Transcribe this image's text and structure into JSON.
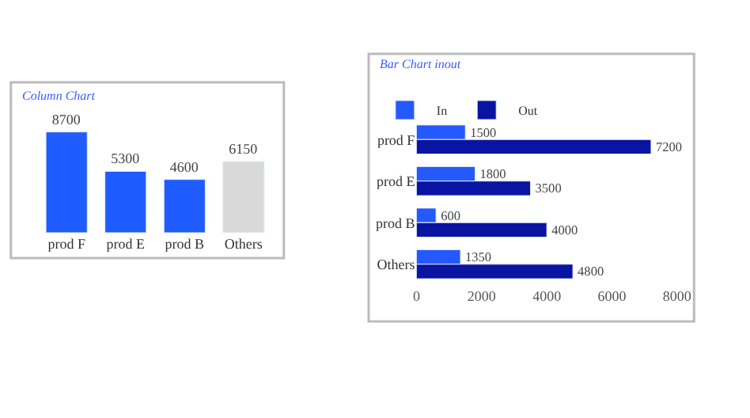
{
  "chart_data": [
    {
      "type": "bar",
      "title": "Column Chart",
      "categories": [
        "prod F",
        "prod E",
        "prod B",
        "Others"
      ],
      "values": [
        8700,
        5300,
        4600,
        6150
      ],
      "colors": [
        "#1f5cff",
        "#1f5cff",
        "#1f5cff",
        "#d9d9d9"
      ],
      "data_labels": true
    },
    {
      "type": "bar",
      "title": "Bar Chart inout",
      "orientation": "horizontal",
      "categories": [
        "prod F",
        "prod E",
        "prod B",
        "Others"
      ],
      "series": [
        {
          "name": "In",
          "color": "#2459ff",
          "values": [
            1500,
            1800,
            600,
            1350
          ]
        },
        {
          "name": "Out",
          "color": "#0a14a3",
          "values": [
            7200,
            3500,
            4000,
            4800
          ]
        }
      ],
      "xlim": [
        0,
        8000
      ],
      "xticks": [
        0,
        2000,
        4000,
        6000,
        8000
      ],
      "data_labels": true,
      "legend": "top left"
    }
  ]
}
